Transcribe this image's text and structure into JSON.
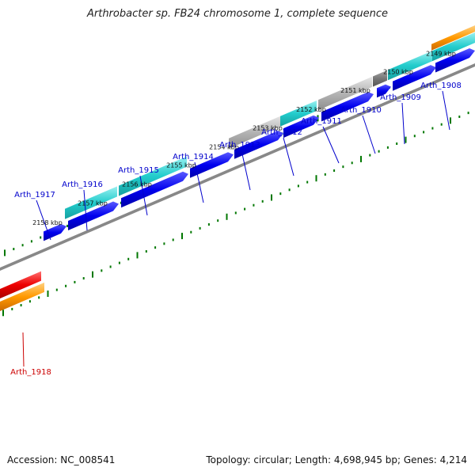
{
  "title": "Arthrobacter sp. FB24 chromosome 1, complete sequence",
  "accession_text": "Accession: NC_008541",
  "summary_text": "Topology: circular; Length: 4,698,945 bp; Genes: 4,214",
  "colors": {
    "cds_forward": "#0000ee",
    "cds_teal": "#22cccc",
    "cds_gray": "#b4b4b4",
    "cds_darkgray": "#777777",
    "cds_orange": "#ff9900",
    "cds_red": "#ee0000",
    "backbone": "#888888",
    "tick": "#007700",
    "label_blue": "#0000cc",
    "label_red": "#cc0000"
  },
  "scale_labels": [
    "2158 kbp",
    "2157 kbp",
    "2156 kbp",
    "2155 kbp",
    "2154 kbp",
    "2153 kbp",
    "2152 kbp",
    "2151 kbp",
    "2150 kbp",
    "2149 kbp"
  ],
  "genes": [
    {
      "name": "Arth_1908",
      "strand": "forward"
    },
    {
      "name": "Arth_1909",
      "strand": "forward"
    },
    {
      "name": "Arth_1910",
      "strand": "forward"
    },
    {
      "name": "Arth_1911",
      "strand": "forward"
    },
    {
      "name": "Arth_1912",
      "strand": "forward"
    },
    {
      "name": "Arth_1913",
      "strand": "forward"
    },
    {
      "name": "Arth_1914",
      "strand": "forward"
    },
    {
      "name": "Arth_1915",
      "strand": "forward"
    },
    {
      "name": "Arth_1916",
      "strand": "forward"
    },
    {
      "name": "Arth_1917",
      "strand": "forward"
    },
    {
      "name": "Arth_1918",
      "strand": "reverse"
    }
  ]
}
